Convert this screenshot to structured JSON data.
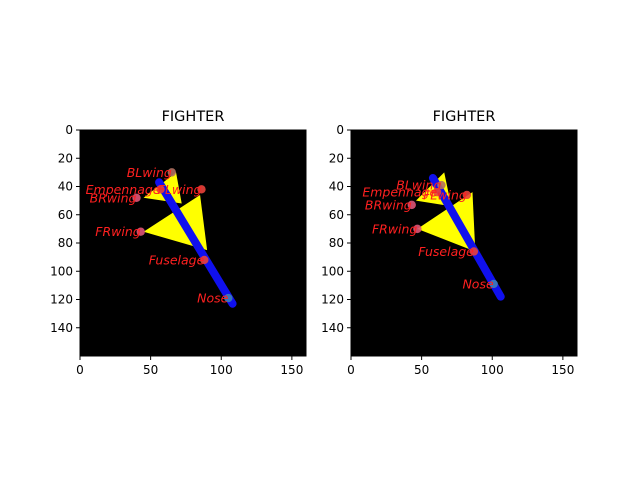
{
  "colors": {
    "background": "#000000",
    "wing": "#ffff00",
    "fuselage": "#1010ee",
    "label": "#ff2020",
    "point_front": "#e8413a",
    "point_mid": "#dd5577",
    "point_nose": "#3d7fb6"
  },
  "chart_data": [
    {
      "type": "scatter",
      "title": "FIGHTER",
      "xlim": [
        0,
        160
      ],
      "ylim": [
        160,
        0
      ],
      "x_ticks": [
        0,
        50,
        100,
        150
      ],
      "y_ticks": [
        0,
        20,
        40,
        60,
        80,
        100,
        120,
        140
      ],
      "grid": false,
      "image": {
        "fuselage": [
          [
            56,
            37
          ],
          [
            108,
            123
          ]
        ],
        "front_wing": [
          [
            45,
            72
          ],
          [
            85,
            46
          ],
          [
            90,
            85
          ]
        ],
        "back_wing": [
          [
            45,
            48
          ],
          [
            68,
            30
          ],
          [
            72,
            52
          ]
        ]
      },
      "keypoints": [
        {
          "name": "BLwing",
          "x": 65,
          "y": 30
        },
        {
          "name": "Empennage",
          "x": 57,
          "y": 42
        },
        {
          "name": "FLwing",
          "x": 86,
          "y": 42
        },
        {
          "name": "BRwing",
          "x": 40,
          "y": 48
        },
        {
          "name": "FRwing",
          "x": 43,
          "y": 72
        },
        {
          "name": "Fuselage",
          "x": 88,
          "y": 92
        },
        {
          "name": "Nose",
          "x": 105,
          "y": 119
        }
      ]
    },
    {
      "type": "scatter",
      "title": "FIGHTER",
      "xlim": [
        0,
        160
      ],
      "ylim": [
        160,
        0
      ],
      "x_ticks": [
        0,
        50,
        100,
        150
      ],
      "y_ticks": [
        0,
        20,
        40,
        60,
        80,
        100,
        120,
        140
      ],
      "grid": false,
      "image": {
        "fuselage": [
          [
            58,
            34
          ],
          [
            106,
            118
          ]
        ],
        "front_wing": [
          [
            47,
            70
          ],
          [
            86,
            44
          ],
          [
            88,
            86
          ]
        ],
        "back_wing": [
          [
            46,
            50
          ],
          [
            66,
            30
          ],
          [
            71,
            54
          ]
        ]
      },
      "keypoints": [
        {
          "name": "BLwing",
          "x": 64,
          "y": 39
        },
        {
          "name": "Empennage",
          "x": 61,
          "y": 44
        },
        {
          "name": "FLwing",
          "x": 82,
          "y": 46
        },
        {
          "name": "BRwing",
          "x": 43,
          "y": 53
        },
        {
          "name": "FRwing",
          "x": 47,
          "y": 70
        },
        {
          "name": "Fuselage",
          "x": 87,
          "y": 86
        },
        {
          "name": "Nose",
          "x": 101,
          "y": 109
        }
      ]
    }
  ]
}
